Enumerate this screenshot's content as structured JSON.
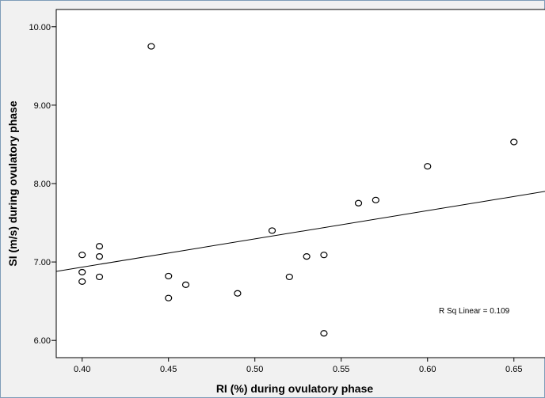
{
  "chart_data": {
    "type": "scatter",
    "xlabel": "RI (%) during ovulatory phase",
    "ylabel": "SI (m/s) during ovulatory phase",
    "xlim": [
      0.385,
      0.668
    ],
    "ylim": [
      5.78,
      10.22
    ],
    "x_ticks": [
      "0.40",
      "0.45",
      "0.50",
      "0.55",
      "0.60",
      "0.65"
    ],
    "y_ticks": [
      "6.00",
      "7.00",
      "8.00",
      "9.00",
      "10.00"
    ],
    "points": [
      {
        "x": 0.4,
        "y": 7.09
      },
      {
        "x": 0.4,
        "y": 6.87
      },
      {
        "x": 0.4,
        "y": 6.75
      },
      {
        "x": 0.41,
        "y": 7.2
      },
      {
        "x": 0.41,
        "y": 7.07
      },
      {
        "x": 0.41,
        "y": 6.81
      },
      {
        "x": 0.44,
        "y": 9.75
      },
      {
        "x": 0.45,
        "y": 6.82
      },
      {
        "x": 0.45,
        "y": 6.54
      },
      {
        "x": 0.46,
        "y": 6.71
      },
      {
        "x": 0.49,
        "y": 6.6
      },
      {
        "x": 0.51,
        "y": 7.4
      },
      {
        "x": 0.52,
        "y": 6.81
      },
      {
        "x": 0.53,
        "y": 7.07
      },
      {
        "x": 0.54,
        "y": 7.09
      },
      {
        "x": 0.54,
        "y": 6.09
      },
      {
        "x": 0.56,
        "y": 7.75
      },
      {
        "x": 0.57,
        "y": 7.79
      },
      {
        "x": 0.6,
        "y": 8.22
      },
      {
        "x": 0.65,
        "y": 8.53
      }
    ],
    "fit_line": {
      "x": [
        0.385,
        0.668
      ],
      "y": [
        6.88,
        7.9
      ]
    },
    "annotation": "R Sq Linear = 0.109",
    "grid": false,
    "legend": "none"
  }
}
